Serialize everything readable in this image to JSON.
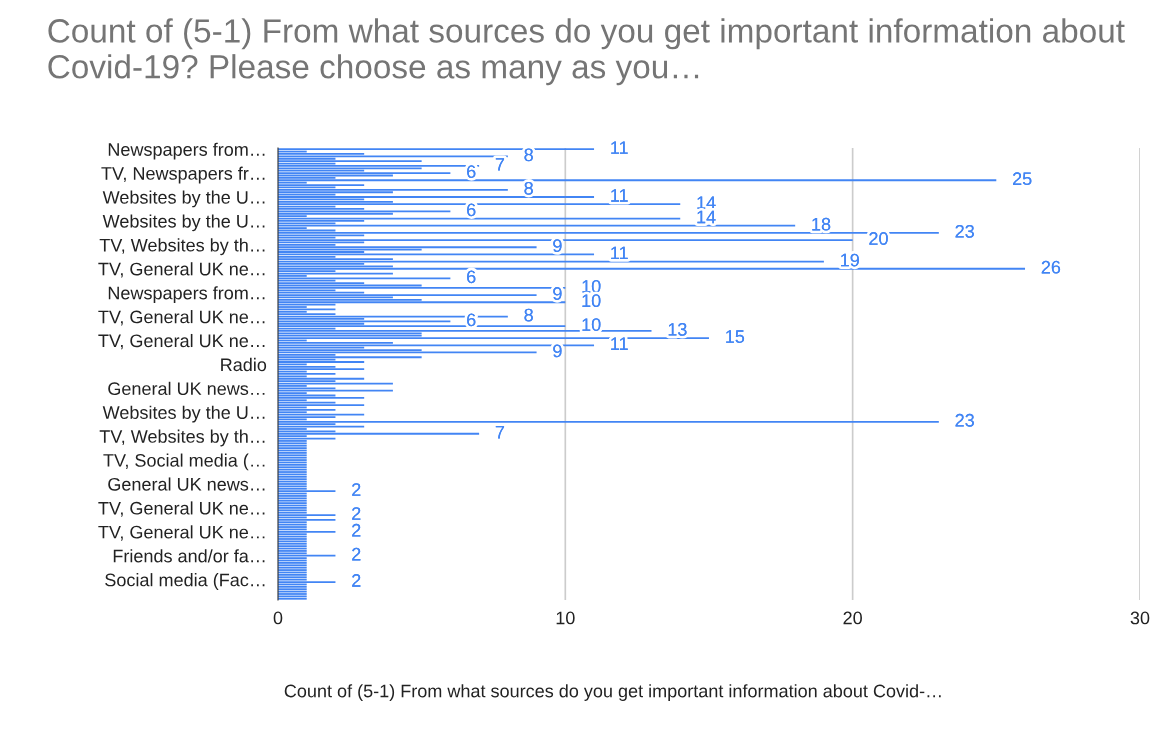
{
  "chart_data": {
    "type": "bar",
    "orientation": "horizontal",
    "title": "Count of (5-1) From what sources do you get important information about Covid-19? Please choose as many as you…",
    "xlabel": "Count of (5-1) From what sources do you get important information about Covid-…",
    "categories": [
      "Newspapers from…",
      null,
      null,
      null,
      null,
      null,
      null,
      null,
      null,
      null,
      "TV, Newspapers fr…",
      null,
      null,
      null,
      null,
      null,
      null,
      null,
      null,
      null,
      "Websites by the U…",
      null,
      null,
      null,
      null,
      null,
      null,
      null,
      null,
      null,
      "Websites by the U…",
      null,
      null,
      null,
      null,
      null,
      null,
      null,
      null,
      null,
      "TV, Websites by th…",
      null,
      null,
      null,
      null,
      null,
      null,
      null,
      null,
      null,
      "TV, General UK ne…",
      null,
      null,
      null,
      null,
      null,
      null,
      null,
      null,
      null,
      "Newspapers from…",
      null,
      null,
      null,
      null,
      null,
      null,
      null,
      null,
      null,
      "TV, General UK ne…",
      null,
      null,
      null,
      null,
      null,
      null,
      null,
      null,
      null,
      "TV, General UK ne…",
      null,
      null,
      null,
      null,
      null,
      null,
      null,
      null,
      null,
      "Radio",
      null,
      null,
      null,
      null,
      null,
      null,
      null,
      null,
      null,
      "General UK news…",
      null,
      null,
      null,
      null,
      null,
      null,
      null,
      null,
      null,
      "Websites by the U…",
      null,
      null,
      null,
      null,
      null,
      null,
      null,
      null,
      null,
      "TV, Websites by th…",
      null,
      null,
      null,
      null,
      null,
      null,
      null,
      null,
      null,
      "TV, Social media (…",
      null,
      null,
      null,
      null,
      null,
      null,
      null,
      null,
      null,
      "General UK news…",
      null,
      null,
      null,
      null,
      null,
      null,
      null,
      null,
      null,
      "TV, General UK ne…",
      null,
      null,
      null,
      null,
      null,
      null,
      null,
      null,
      null,
      "TV, General UK ne…",
      null,
      null,
      null,
      null,
      null,
      null,
      null,
      null,
      null,
      "Friends and/or fa…",
      null,
      null,
      null,
      null,
      null,
      null,
      null,
      null,
      null,
      "Social media (Fac…",
      null,
      null,
      null,
      null,
      null,
      null,
      null,
      null
    ],
    "values": [
      11,
      1,
      3,
      8,
      2,
      5,
      2,
      7,
      5,
      3,
      6,
      4,
      2,
      25,
      1,
      3,
      2,
      8,
      4,
      2,
      11,
      3,
      4,
      14,
      2,
      3,
      6,
      4,
      1,
      14,
      3,
      2,
      18,
      1,
      2,
      23,
      3,
      2,
      20,
      3,
      2,
      9,
      5,
      3,
      11,
      2,
      4,
      19,
      3,
      4,
      26,
      2,
      4,
      1,
      6,
      2,
      3,
      5,
      10,
      2,
      3,
      9,
      4,
      5,
      10,
      2,
      1,
      2,
      1,
      2,
      8,
      3,
      6,
      3,
      10,
      2,
      13,
      5,
      5,
      15,
      1,
      4,
      11,
      3,
      5,
      9,
      2,
      5,
      2,
      3,
      1,
      2,
      3,
      1,
      2,
      1,
      3,
      2,
      4,
      1,
      2,
      4,
      1,
      2,
      3,
      1,
      2,
      3,
      1,
      2,
      1,
      3,
      2,
      1,
      23,
      2,
      3,
      1,
      2,
      7,
      1,
      2,
      1,
      1,
      1,
      1,
      1,
      1,
      1,
      1,
      1,
      1,
      1,
      1,
      1,
      1,
      1,
      1,
      1,
      1,
      1,
      1,
      1,
      2,
      1,
      1,
      1,
      1,
      1,
      1,
      1,
      1,
      1,
      2,
      1,
      2,
      1,
      1,
      1,
      1,
      2,
      1,
      1,
      1,
      1,
      1,
      1,
      1,
      1,
      1,
      2,
      1,
      1,
      1,
      1,
      1,
      1,
      1,
      1,
      1,
      1,
      2,
      1,
      1,
      1,
      1,
      1,
      1,
      1
    ],
    "value_labels": [
      "11",
      null,
      null,
      "8",
      null,
      null,
      null,
      "7",
      null,
      null,
      "6",
      null,
      null,
      "25",
      null,
      null,
      null,
      "8",
      null,
      null,
      "11",
      null,
      null,
      "14",
      null,
      null,
      "6",
      null,
      null,
      "14",
      null,
      null,
      "18",
      null,
      null,
      "23",
      null,
      null,
      "20",
      null,
      null,
      "9",
      null,
      null,
      "11",
      null,
      null,
      "19",
      null,
      null,
      "26",
      null,
      null,
      null,
      "6",
      null,
      null,
      null,
      "10",
      null,
      null,
      "9",
      null,
      null,
      "10",
      null,
      null,
      null,
      null,
      null,
      "8",
      null,
      "6",
      null,
      "10",
      null,
      "13",
      null,
      null,
      "15",
      null,
      null,
      "11",
      null,
      null,
      "9",
      null,
      null,
      null,
      null,
      null,
      null,
      null,
      null,
      null,
      null,
      null,
      null,
      null,
      null,
      null,
      null,
      null,
      null,
      null,
      null,
      null,
      null,
      null,
      null,
      null,
      null,
      null,
      null,
      "23",
      null,
      null,
      null,
      null,
      "7",
      null,
      null,
      null,
      null,
      null,
      null,
      null,
      null,
      null,
      null,
      null,
      null,
      null,
      null,
      null,
      null,
      null,
      null,
      null,
      null,
      null,
      null,
      null,
      "2",
      null,
      null,
      null,
      null,
      null,
      null,
      null,
      null,
      null,
      "2",
      null,
      null,
      null,
      null,
      null,
      null,
      "2",
      null,
      null,
      null,
      null,
      null,
      null,
      null,
      null,
      null,
      "2",
      null,
      null,
      null,
      null,
      null,
      null,
      null,
      null,
      null,
      null,
      "2",
      null,
      null,
      null,
      null,
      null,
      null,
      null
    ],
    "color": "#4285f4",
    "xlim": [
      0,
      30
    ],
    "xticks": [
      0,
      10,
      20,
      30
    ],
    "grid": "x"
  }
}
